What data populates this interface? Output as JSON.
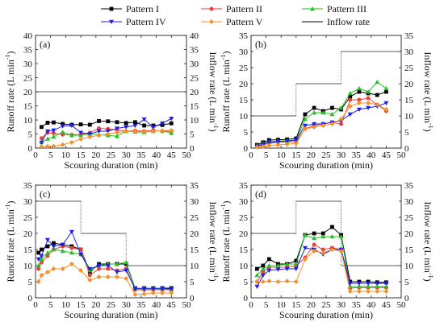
{
  "legend": {
    "entries": [
      {
        "label": "Pattern I",
        "color": "#000000",
        "marker": "square"
      },
      {
        "label": "Pattern II",
        "color": "#e8413c",
        "marker": "circle"
      },
      {
        "label": "Pattern III",
        "color": "#22c322",
        "marker": "triangle-up"
      },
      {
        "label": "Pattern IV",
        "color": "#1f1fe0",
        "marker": "triangle-down"
      },
      {
        "label": "Pattern V",
        "color": "#f5912d",
        "marker": "diamond"
      },
      {
        "label": "Inflow rate",
        "color": "#000000",
        "marker": "line"
      }
    ]
  },
  "axis_text": {
    "xlabel": "Scouring duration (min)",
    "ylabel_left": "Runoff rate (L min",
    "ylabel_right": "Inflow rate (L min",
    "superscript": "-1",
    "close_paren": ")"
  },
  "chart_data": [
    {
      "type": "line",
      "panel_label": "(a)",
      "xlim": [
        0,
        50
      ],
      "ylim": [
        0,
        40
      ],
      "xticks": [
        0,
        5,
        10,
        15,
        20,
        25,
        30,
        35,
        40,
        45,
        50
      ],
      "yticks": [
        0,
        5,
        10,
        15,
        20,
        25,
        30,
        35,
        40
      ],
      "xlabel": "Scouring duration (min)",
      "x": [
        2,
        4,
        6,
        9,
        12,
        15,
        18,
        21,
        24,
        27,
        30,
        33,
        36,
        39,
        42,
        45
      ],
      "series": [
        {
          "name": "Pattern I",
          "values": [
            7.5,
            9.0,
            9.1,
            8.6,
            8.3,
            8.4,
            8.3,
            9.6,
            9.5,
            9.2,
            8.9,
            9.2,
            8.0,
            8.0,
            8.2,
            8.8
          ]
        },
        {
          "name": "Pattern II",
          "values": [
            3.5,
            5.5,
            5.3,
            4.8,
            4.7,
            4.8,
            5.5,
            7.0,
            6.8,
            6.5,
            6.0,
            6.2,
            6.0,
            6.3,
            6.0,
            6.0
          ]
        },
        {
          "name": "Pattern III",
          "values": [
            2.0,
            3.3,
            4.0,
            5.7,
            4.5,
            4.6,
            5.0,
            4.8,
            4.5,
            4.2,
            6.0,
            5.8,
            5.6,
            6.0,
            6.2,
            5.3
          ]
        },
        {
          "name": "Pattern IV",
          "values": [
            2.0,
            6.0,
            6.3,
            7.8,
            8.0,
            5.5,
            5.0,
            6.0,
            6.0,
            7.0,
            7.5,
            8.0,
            10.2,
            7.4,
            8.8,
            10.5
          ]
        },
        {
          "name": "Pattern V",
          "values": [
            0.5,
            0.6,
            0.7,
            1.2,
            2.0,
            3.2,
            4.0,
            4.5,
            5.0,
            5.5,
            6.0,
            6.0,
            5.8,
            6.0,
            6.2,
            6.3
          ]
        }
      ],
      "inflow": [
        [
          0,
          20
        ],
        [
          50,
          20
        ]
      ]
    },
    {
      "type": "line",
      "panel_label": "(b)",
      "xlim": [
        0,
        50
      ],
      "ylim": [
        0,
        35
      ],
      "xticks": [
        0,
        5,
        10,
        15,
        20,
        25,
        30,
        35,
        40,
        45,
        50
      ],
      "yticks": [
        0,
        5,
        10,
        15,
        20,
        25,
        30,
        35
      ],
      "xlabel": "Scouring duration (min)",
      "x": [
        2,
        4,
        6,
        9,
        12,
        15,
        18,
        21,
        24,
        27,
        30,
        33,
        36,
        39,
        42,
        45
      ],
      "series": [
        {
          "name": "Pattern I",
          "values": [
            1.0,
            1.8,
            2.5,
            2.6,
            2.7,
            3.0,
            10.5,
            12.5,
            11.5,
            12.5,
            12.0,
            16.0,
            17.5,
            17.0,
            16.5,
            17.5
          ]
        },
        {
          "name": "Pattern II",
          "values": [
            0.5,
            1.0,
            1.5,
            1.8,
            2.0,
            2.0,
            6.0,
            7.0,
            7.5,
            8.0,
            7.5,
            15.0,
            15.0,
            15.5,
            13.5,
            11.5
          ]
        },
        {
          "name": "Pattern III",
          "values": [
            0.8,
            1.5,
            2.0,
            2.2,
            2.3,
            2.5,
            9.0,
            11.0,
            11.0,
            10.5,
            12.5,
            17.0,
            18.5,
            17.5,
            20.5,
            18.5
          ]
        },
        {
          "name": "Pattern IV",
          "values": [
            0.5,
            1.2,
            1.8,
            2.0,
            2.2,
            2.5,
            7.0,
            7.5,
            7.5,
            8.0,
            8.5,
            10.5,
            12.0,
            12.5,
            13.0,
            14.0
          ]
        },
        {
          "name": "Pattern V",
          "values": [
            0.3,
            0.5,
            0.8,
            1.0,
            1.2,
            1.5,
            6.0,
            6.5,
            7.0,
            7.5,
            9.0,
            13.0,
            14.0,
            14.0,
            13.5,
            12.0
          ]
        }
      ],
      "inflow": [
        [
          0,
          10
        ],
        [
          15,
          10
        ],
        [
          15,
          20
        ],
        [
          30,
          20
        ],
        [
          30,
          30
        ],
        [
          50,
          30
        ]
      ]
    },
    {
      "type": "line",
      "panel_label": "(c)",
      "xlim": [
        0,
        50
      ],
      "ylim": [
        0,
        35
      ],
      "xticks": [
        0,
        5,
        10,
        15,
        20,
        25,
        30,
        35,
        40,
        45,
        50
      ],
      "yticks": [
        0,
        5,
        10,
        15,
        20,
        25,
        30,
        35
      ],
      "xlabel": "Scouring duration (min)",
      "x": [
        1,
        2,
        4,
        6,
        9,
        12,
        15,
        18,
        21,
        24,
        27,
        30,
        33,
        36,
        39,
        42,
        45
      ],
      "series": [
        {
          "name": "Pattern I",
          "values": [
            14.0,
            15.0,
            16.0,
            17.0,
            16.5,
            16.0,
            15.0,
            8.0,
            10.5,
            10.5,
            10.5,
            10.5,
            3.0,
            3.0,
            3.0,
            3.0,
            3.0
          ]
        },
        {
          "name": "Pattern II",
          "values": [
            9.0,
            11.0,
            13.0,
            15.0,
            16.0,
            15.5,
            15.0,
            7.0,
            9.0,
            9.0,
            8.5,
            9.0,
            2.5,
            2.5,
            2.5,
            2.5,
            2.5
          ]
        },
        {
          "name": "Pattern III",
          "values": [
            10.0,
            12.0,
            14.0,
            15.0,
            14.5,
            14.0,
            13.5,
            8.5,
            10.0,
            10.5,
            10.5,
            11.0,
            3.0,
            3.0,
            3.0,
            3.0,
            2.5
          ]
        },
        {
          "name": "Pattern IV",
          "values": [
            12.0,
            13.0,
            18.0,
            16.0,
            16.5,
            20.5,
            13.5,
            9.0,
            10.0,
            10.0,
            8.0,
            8.5,
            2.8,
            2.8,
            2.8,
            2.8,
            2.8
          ]
        },
        {
          "name": "Pattern V",
          "values": [
            5.0,
            7.0,
            8.0,
            9.0,
            9.0,
            10.5,
            8.5,
            5.5,
            6.5,
            6.5,
            6.5,
            6.0,
            1.0,
            1.2,
            1.5,
            1.5,
            1.5
          ]
        }
      ],
      "inflow": [
        [
          0,
          30
        ],
        [
          15,
          30
        ],
        [
          15,
          20
        ],
        [
          30,
          20
        ],
        [
          30,
          10
        ],
        [
          50,
          10
        ]
      ]
    },
    {
      "type": "line",
      "panel_label": "(d)",
      "xlim": [
        0,
        50
      ],
      "ylim": [
        0,
        35
      ],
      "xticks": [
        0,
        5,
        10,
        15,
        20,
        25,
        30,
        35,
        40,
        45,
        50
      ],
      "yticks": [
        0,
        5,
        10,
        15,
        20,
        25,
        30,
        35
      ],
      "xlabel": "Scouring duration (min)",
      "x": [
        2,
        4,
        6,
        9,
        12,
        15,
        18,
        21,
        24,
        27,
        30,
        33,
        36,
        39,
        42,
        45
      ],
      "series": [
        {
          "name": "Pattern I",
          "values": [
            9.0,
            10.0,
            12.0,
            10.5,
            10.5,
            11.5,
            19.5,
            20.0,
            20.0,
            22.0,
            19.5,
            5.0,
            5.0,
            5.0,
            4.8,
            4.8
          ]
        },
        {
          "name": "Pattern II",
          "values": [
            5.0,
            8.0,
            9.5,
            9.5,
            9.5,
            10.0,
            12.5,
            16.5,
            15.0,
            15.5,
            15.0,
            3.0,
            3.2,
            3.2,
            3.2,
            3.2
          ]
        },
        {
          "name": "Pattern III",
          "values": [
            7.0,
            9.0,
            10.0,
            10.0,
            10.5,
            10.5,
            19.5,
            18.5,
            19.0,
            19.0,
            19.0,
            3.5,
            3.5,
            3.5,
            3.5,
            3.5
          ]
        },
        {
          "name": "Pattern IV",
          "values": [
            3.5,
            7.0,
            8.5,
            8.8,
            9.0,
            9.0,
            15.5,
            15.0,
            13.5,
            15.0,
            15.0,
            4.5,
            4.5,
            4.5,
            4.5,
            4.5
          ]
        },
        {
          "name": "Pattern V",
          "values": [
            5.0,
            5.0,
            5.2,
            5.0,
            5.2,
            5.0,
            12.0,
            14.5,
            14.0,
            15.0,
            14.5,
            2.0,
            2.0,
            2.0,
            2.0,
            2.0
          ]
        }
      ],
      "inflow": [
        [
          0,
          20
        ],
        [
          15,
          20
        ],
        [
          15,
          30
        ],
        [
          30,
          30
        ],
        [
          30,
          10
        ],
        [
          50,
          10
        ]
      ]
    }
  ]
}
